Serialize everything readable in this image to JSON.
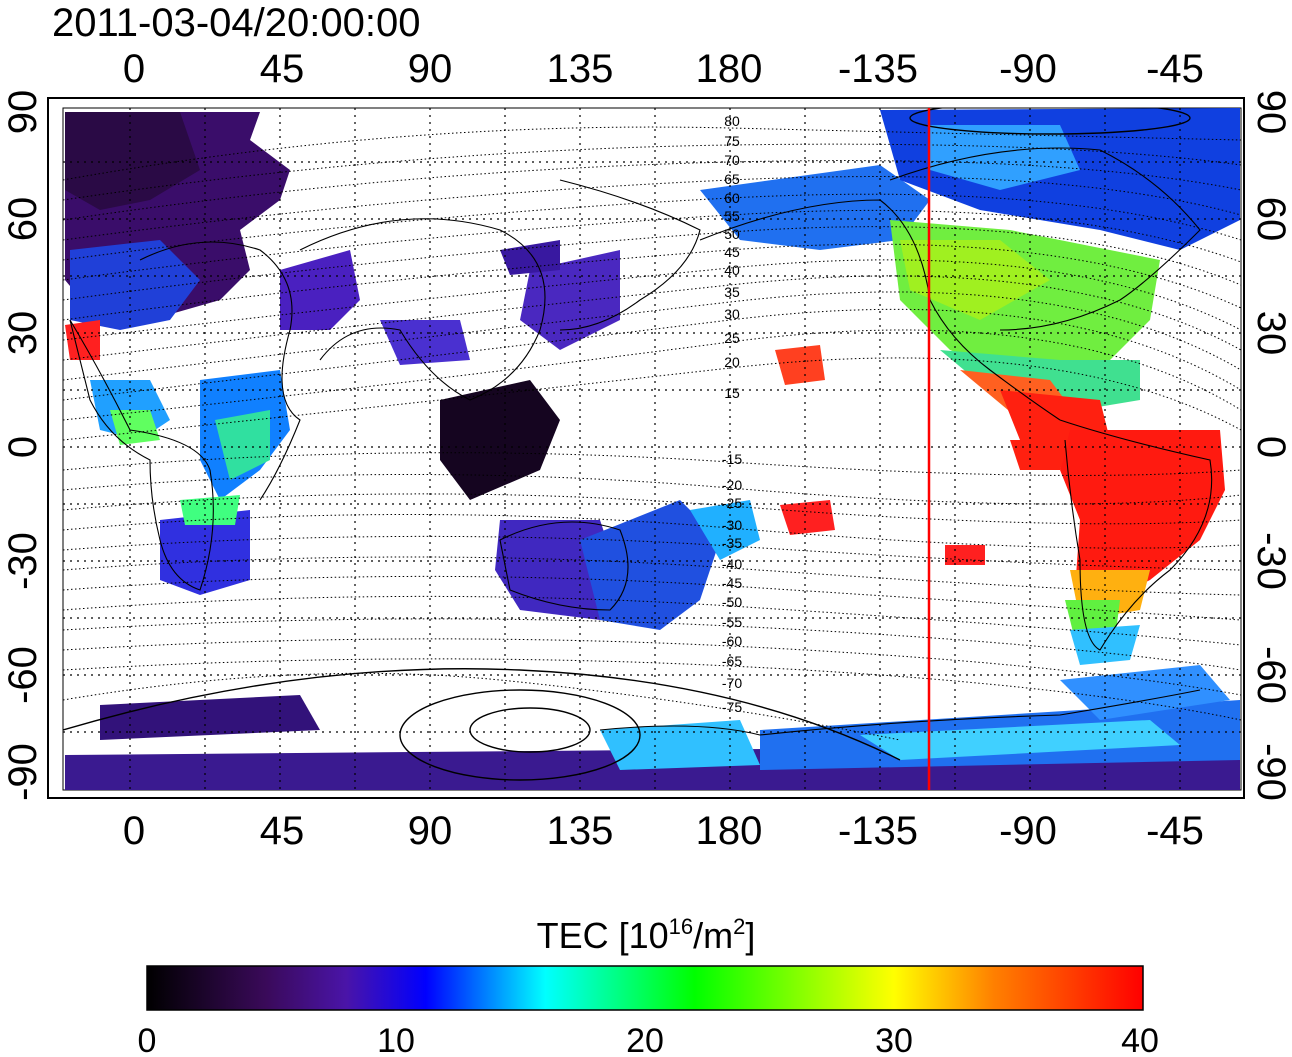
{
  "timestamp": "2011-03-04/20:00:00",
  "top_lon_labels": [
    "0",
    "45",
    "90",
    "135",
    "180",
    "-135",
    "-90",
    "-45"
  ],
  "bottom_lon_labels": [
    "0",
    "45",
    "90",
    "135",
    "180",
    "-135",
    "-90",
    "-45"
  ],
  "left_lat_labels": [
    "90",
    "60",
    "30",
    "0",
    "-30",
    "-60",
    "-90"
  ],
  "right_lat_labels": [
    "90",
    "60",
    "30",
    "0",
    "-30",
    "-60",
    "-90"
  ],
  "contour_labels_north": [
    "80",
    "75",
    "70",
    "65",
    "60",
    "55",
    "50",
    "45",
    "40",
    "35",
    "30",
    "25",
    "20",
    "15"
  ],
  "contour_labels_south": [
    "-15",
    "-20",
    "-25",
    "-30",
    "-35",
    "-40",
    "-45",
    "-50",
    "-55",
    "-60",
    "-65",
    "-70",
    "-75"
  ],
  "colorbar": {
    "title_prefix": "TEC  [10",
    "title_exp1": "16",
    "title_mid": "/m",
    "title_exp2": "2",
    "title_suffix": "]",
    "tick_labels": [
      "0",
      "10",
      "20",
      "30",
      "40"
    ],
    "colors": [
      "#000000",
      "#3a0a5a",
      "#4a14a8",
      "#0000ff",
      "#00ffff",
      "#00ff00",
      "#ffff00",
      "#ff8000",
      "#ff0000"
    ]
  },
  "marker_line_color": "#ff0000"
}
